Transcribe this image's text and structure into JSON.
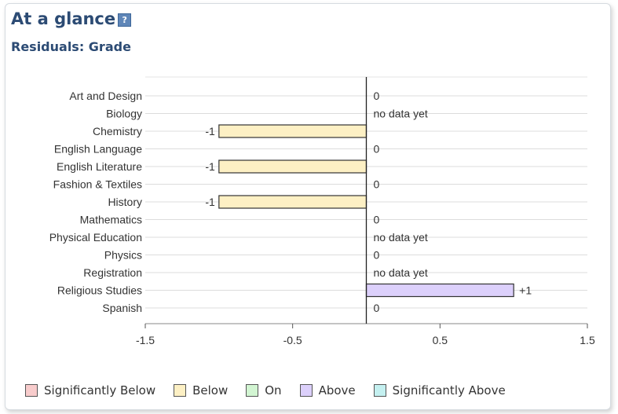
{
  "header": {
    "title": "At a glance",
    "help_icon": "help-icon",
    "subtitle": "Residuals: Grade"
  },
  "chart_data": {
    "type": "bar",
    "orientation": "horizontal",
    "categories": [
      "Art and Design",
      "Biology",
      "Chemistry",
      "English Language",
      "English Literature",
      "Fashion & Textiles",
      "History",
      "Mathematics",
      "Physical Education",
      "Physics",
      "Registration",
      "Religious Studies",
      "Spanish"
    ],
    "values": [
      0,
      null,
      -1,
      0,
      -1,
      0,
      -1,
      0,
      null,
      0,
      null,
      1,
      0
    ],
    "data_labels": [
      "0",
      "no data yet",
      "-1",
      "0",
      "-1",
      "0",
      "-1",
      "0",
      "no data yet",
      "0",
      "no data yet",
      "+1",
      "0"
    ],
    "bar_colors": {
      "below": "#fdf0c4",
      "above": "#dcd0fb"
    },
    "xlim": [
      -1.5,
      1.5
    ],
    "xticks": [
      -1.5,
      -0.5,
      0.5,
      1.5
    ],
    "xtick_labels": [
      "-1.5",
      "-0.5",
      "0.5",
      "1.5"
    ],
    "grid": true,
    "legend_position": "bottom"
  },
  "legend": [
    {
      "label": "Significantly Below",
      "color": "#f8cccc"
    },
    {
      "label": "Below",
      "color": "#fdf0c4"
    },
    {
      "label": "On",
      "color": "#d2f5d2"
    },
    {
      "label": "Above",
      "color": "#dcd0fb"
    },
    {
      "label": "Significantly Above",
      "color": "#c4f0f0"
    }
  ]
}
